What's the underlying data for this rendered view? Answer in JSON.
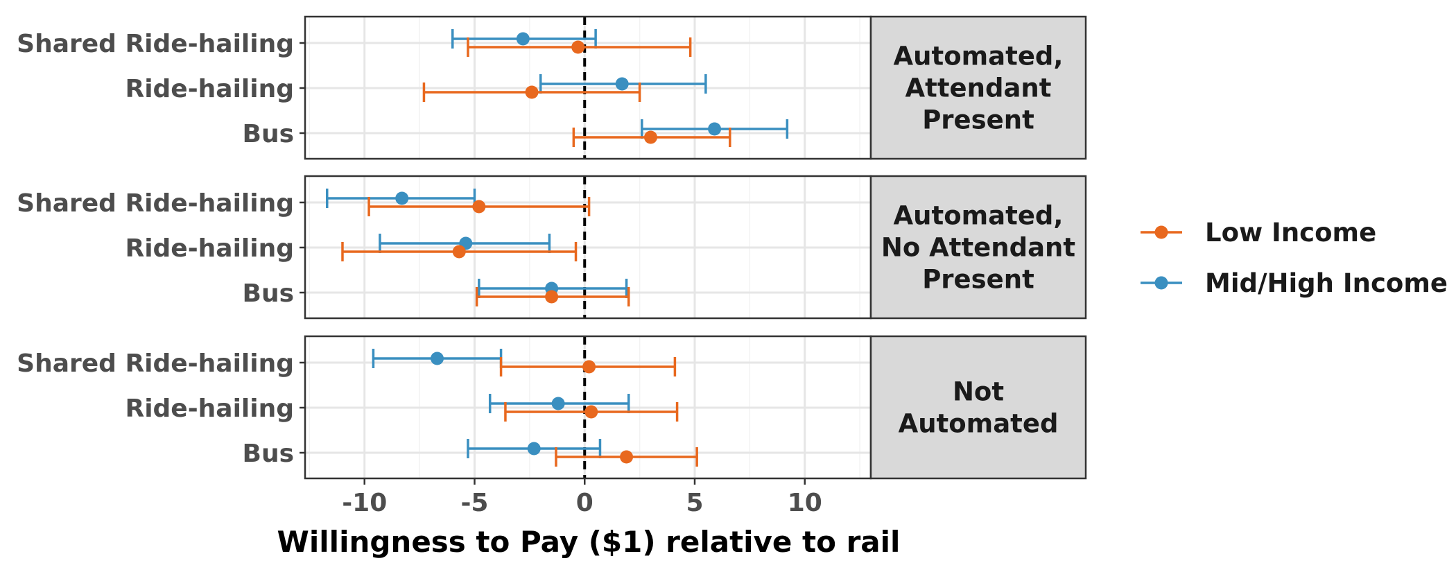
{
  "chart_data": {
    "type": "scatter",
    "subtype": "dot-and-whisker, faceted",
    "xlabel": "Willingness to Pay ($1) relative to rail",
    "xlim": [
      -12.7,
      13.0
    ],
    "xticks": [
      -10,
      -5,
      0,
      5,
      10
    ],
    "xtick_labels": [
      "-10",
      "-5",
      "0",
      "5",
      "10"
    ],
    "reference_line_x": 0,
    "grid": true,
    "legend_position": "right",
    "categories": [
      "Shared Ride-hailing",
      "Ride-hailing",
      "Bus"
    ],
    "colors": {
      "Low Income": "#E8681E",
      "Mid/High Income": "#3A8FC0"
    },
    "series": [
      {
        "name": "Low Income",
        "color": "#E8681E"
      },
      {
        "name": "Mid/High Income",
        "color": "#3A8FC0"
      }
    ],
    "panels": [
      {
        "label_lines": [
          "Automated,",
          "Attendant",
          "Present"
        ],
        "points": [
          {
            "category": "Shared Ride-hailing",
            "series": "Mid/High Income",
            "estimate": -2.8,
            "low": -6.0,
            "high": 0.5
          },
          {
            "category": "Shared Ride-hailing",
            "series": "Low Income",
            "estimate": -0.3,
            "low": -5.3,
            "high": 4.8
          },
          {
            "category": "Ride-hailing",
            "series": "Mid/High Income",
            "estimate": 1.7,
            "low": -2.0,
            "high": 5.5
          },
          {
            "category": "Ride-hailing",
            "series": "Low Income",
            "estimate": -2.4,
            "low": -7.3,
            "high": 2.5
          },
          {
            "category": "Bus",
            "series": "Mid/High Income",
            "estimate": 5.9,
            "low": 2.6,
            "high": 9.2
          },
          {
            "category": "Bus",
            "series": "Low Income",
            "estimate": 3.0,
            "low": -0.5,
            "high": 6.6
          }
        ]
      },
      {
        "label_lines": [
          "Automated,",
          "No Attendant",
          "Present"
        ],
        "points": [
          {
            "category": "Shared Ride-hailing",
            "series": "Mid/High Income",
            "estimate": -8.3,
            "low": -11.7,
            "high": -5.0
          },
          {
            "category": "Shared Ride-hailing",
            "series": "Low Income",
            "estimate": -4.8,
            "low": -9.8,
            "high": 0.2
          },
          {
            "category": "Ride-hailing",
            "series": "Mid/High Income",
            "estimate": -5.4,
            "low": -9.3,
            "high": -1.6
          },
          {
            "category": "Ride-hailing",
            "series": "Low Income",
            "estimate": -5.7,
            "low": -11.0,
            "high": -0.4
          },
          {
            "category": "Bus",
            "series": "Mid/High Income",
            "estimate": -1.5,
            "low": -4.8,
            "high": 1.9
          },
          {
            "category": "Bus",
            "series": "Low Income",
            "estimate": -1.5,
            "low": -4.9,
            "high": 2.0
          }
        ]
      },
      {
        "label_lines": [
          "Not",
          "Automated"
        ],
        "points": [
          {
            "category": "Shared Ride-hailing",
            "series": "Mid/High Income",
            "estimate": -6.7,
            "low": -9.6,
            "high": -3.8
          },
          {
            "category": "Shared Ride-hailing",
            "series": "Low Income",
            "estimate": 0.2,
            "low": -3.8,
            "high": 4.1
          },
          {
            "category": "Ride-hailing",
            "series": "Mid/High Income",
            "estimate": -1.2,
            "low": -4.3,
            "high": 2.0
          },
          {
            "category": "Ride-hailing",
            "series": "Low Income",
            "estimate": 0.3,
            "low": -3.6,
            "high": 4.2
          },
          {
            "category": "Bus",
            "series": "Mid/High Income",
            "estimate": -2.3,
            "low": -5.3,
            "high": 0.7
          },
          {
            "category": "Bus",
            "series": "Low Income",
            "estimate": 1.9,
            "low": -1.3,
            "high": 5.1
          }
        ]
      }
    ]
  }
}
